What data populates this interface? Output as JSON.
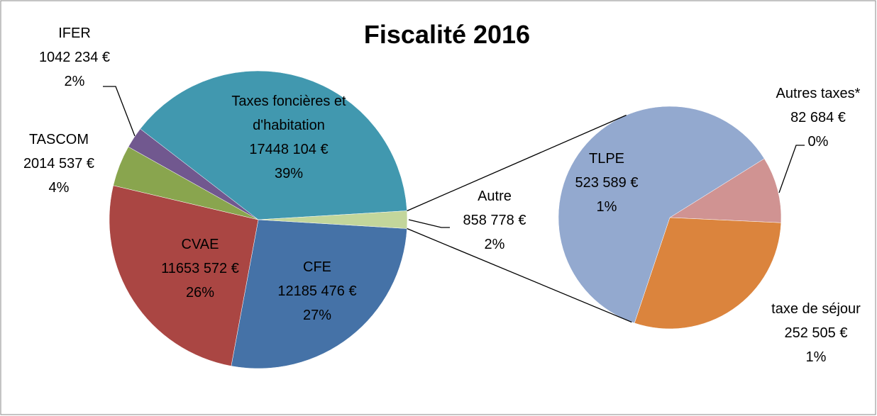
{
  "chart_data": {
    "type": "pie-of-pie",
    "title": "Fiscalité 2016",
    "categories": [
      "CFE",
      "CVAE",
      "TASCOM",
      "IFER",
      "Taxes foncières et d'habitation",
      "Autre"
    ],
    "values": [
      12185476,
      11653572,
      2014537,
      1042234,
      17448104,
      858778
    ],
    "value_labels": [
      "12185 476 €",
      "11653 572 €",
      "2014 537 €",
      "1042 234 €",
      "17448 104 €",
      "858 778 €"
    ],
    "percent_labels": [
      "27%",
      "26%",
      "4%",
      "2%",
      "39%",
      "2%"
    ],
    "colors": [
      "#4572A7",
      "#AA4643",
      "#89A54E",
      "#71588F",
      "#4198AF",
      "#C3D69B"
    ],
    "secondary": {
      "categories": [
        "Autres taxes*",
        "taxe de séjour",
        "TLPE"
      ],
      "values": [
        82684,
        252505,
        523589
      ],
      "value_labels": [
        "82 684 €",
        "252 505 €",
        "523 589 €"
      ],
      "percent_labels": [
        "0%",
        "1%",
        "1%"
      ],
      "colors": [
        "#D09392",
        "#DB843D",
        "#93A9CF"
      ]
    }
  }
}
